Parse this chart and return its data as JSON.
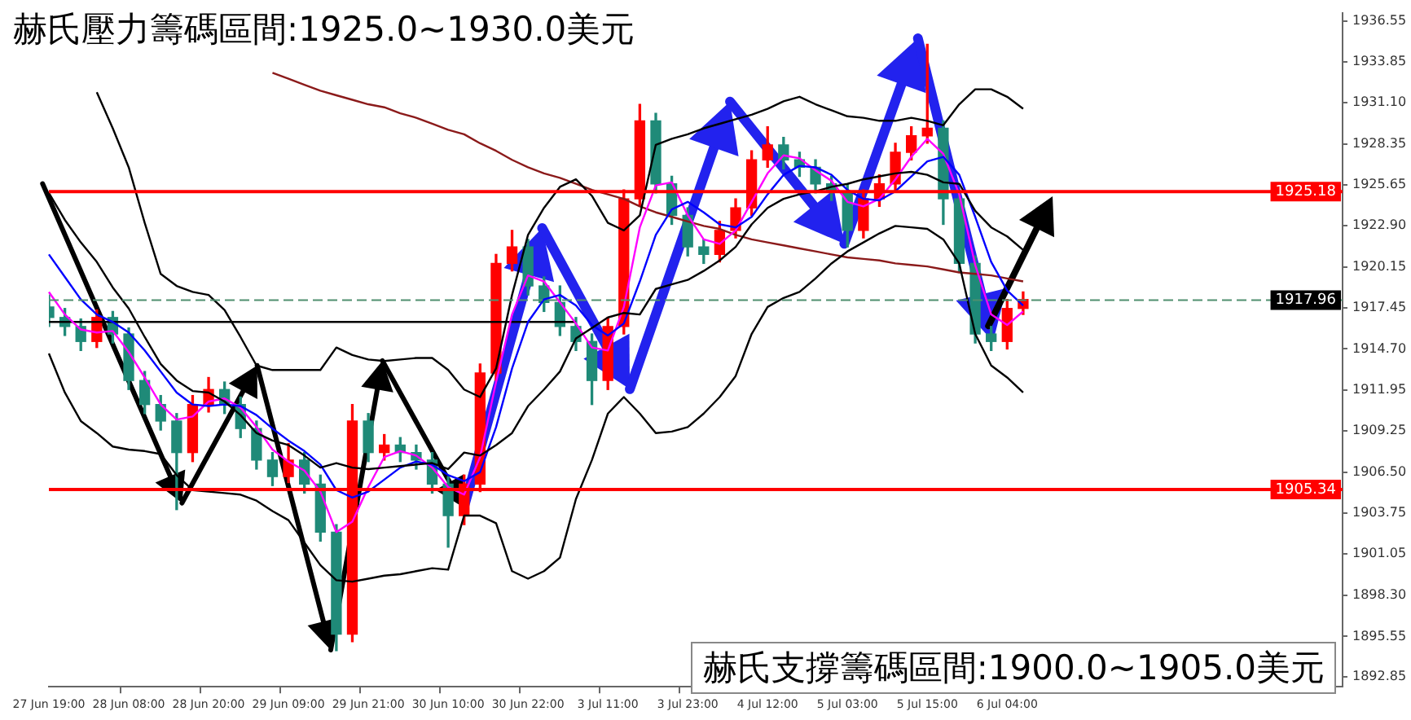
{
  "chart_data": {
    "type": "candlestick",
    "title": "赫氏壓力籌碼區間:1925.0~1930.0美元",
    "annotations": [
      "赫氏支撐籌碼區間:1900.0~1905.0美元"
    ],
    "categories": [
      "27 Jun 19:00",
      null,
      null,
      null,
      null,
      "28 Jun 08:00",
      null,
      null,
      null,
      null,
      "28 Jun 20:00",
      null,
      null,
      null,
      null,
      "29 Jun 09:00",
      null,
      null,
      null,
      null,
      "29 Jun 21:00",
      null,
      null,
      null,
      null,
      "30 Jun 10:00",
      null,
      null,
      null,
      null,
      "30 Jun 22:00",
      null,
      null,
      null,
      null,
      "3 Jul 11:00",
      null,
      null,
      null,
      null,
      "3 Jul 23:00",
      null,
      null,
      null,
      null,
      "4 Jul 12:00",
      null,
      null,
      null,
      null,
      "5 Jul 03:00",
      null,
      null,
      null,
      null,
      "5 Jul 15:00",
      null,
      null,
      null,
      null,
      "6 Jul 04:00",
      null,
      null,
      null,
      null,
      null,
      null,
      null,
      null,
      null,
      null,
      null,
      null,
      null,
      null,
      null,
      null,
      null,
      null,
      null,
      null,
      null
    ],
    "ohlc": [
      [
        1917.5,
        1918.3,
        1916.2,
        1916.8
      ],
      [
        1916.8,
        1917.4,
        1915.6,
        1916.2
      ],
      [
        1916.2,
        1916.7,
        1914.6,
        1915.2
      ],
      [
        1915.2,
        1917.3,
        1914.8,
        1916.8
      ],
      [
        1916.8,
        1917.2,
        1915.1,
        1915.7
      ],
      [
        1915.7,
        1916.1,
        1912.0,
        1912.6
      ],
      [
        1912.6,
        1913.2,
        1910.4,
        1911.0
      ],
      [
        1911.0,
        1911.6,
        1909.3,
        1909.9
      ],
      [
        1909.9,
        1910.4,
        1904.0,
        1907.8
      ],
      [
        1907.8,
        1911.6,
        1907.2,
        1911.0
      ],
      [
        1911.0,
        1912.8,
        1910.5,
        1912.0
      ],
      [
        1912.0,
        1912.5,
        1910.4,
        1911.0
      ],
      [
        1911.0,
        1911.5,
        1908.8,
        1909.4
      ],
      [
        1909.4,
        1909.9,
        1906.7,
        1907.3
      ],
      [
        1907.3,
        1907.8,
        1905.6,
        1906.2
      ],
      [
        1906.2,
        1908.4,
        1905.8,
        1907.3
      ],
      [
        1907.3,
        1907.8,
        1905.1,
        1905.7
      ],
      [
        1905.7,
        1906.3,
        1901.9,
        1902.5
      ],
      [
        1902.5,
        1903.0,
        1894.6,
        1895.7
      ],
      [
        1895.7,
        1911.0,
        1895.2,
        1909.9
      ],
      [
        1909.9,
        1910.4,
        1907.2,
        1907.8
      ],
      [
        1907.8,
        1909.0,
        1907.3,
        1908.3
      ],
      [
        1908.3,
        1908.8,
        1907.2,
        1907.8
      ],
      [
        1907.8,
        1908.3,
        1906.7,
        1907.3
      ],
      [
        1907.3,
        1907.8,
        1905.1,
        1905.7
      ],
      [
        1905.7,
        1906.2,
        1901.5,
        1903.6
      ],
      [
        1903.6,
        1906.3,
        1903.0,
        1905.7
      ],
      [
        1905.7,
        1913.7,
        1905.2,
        1913.1
      ],
      [
        1913.1,
        1921.0,
        1912.6,
        1920.4
      ],
      [
        1920.4,
        1922.6,
        1919.9,
        1921.5
      ],
      [
        1921.5,
        1922.0,
        1918.3,
        1918.9
      ],
      [
        1918.9,
        1919.5,
        1917.2,
        1917.8
      ],
      [
        1917.8,
        1918.9,
        1915.6,
        1916.2
      ],
      [
        1916.2,
        1916.8,
        1914.6,
        1915.2
      ],
      [
        1915.2,
        1915.7,
        1911.0,
        1912.6
      ],
      [
        1912.6,
        1916.8,
        1912.0,
        1916.2
      ],
      [
        1916.2,
        1925.3,
        1915.7,
        1924.7
      ],
      [
        1924.7,
        1931.0,
        1924.2,
        1929.9
      ],
      [
        1929.9,
        1930.4,
        1925.1,
        1925.7
      ],
      [
        1925.7,
        1926.2,
        1923.0,
        1923.6
      ],
      [
        1923.6,
        1924.1,
        1920.9,
        1921.5
      ],
      [
        1921.5,
        1922.0,
        1920.4,
        1921.0
      ],
      [
        1921.0,
        1923.2,
        1920.5,
        1922.6
      ],
      [
        1922.6,
        1924.7,
        1922.1,
        1924.1
      ],
      [
        1924.1,
        1927.9,
        1923.6,
        1927.3
      ],
      [
        1927.3,
        1929.5,
        1926.8,
        1928.3
      ],
      [
        1928.3,
        1928.8,
        1926.7,
        1927.3
      ],
      [
        1927.3,
        1927.8,
        1926.2,
        1926.8
      ],
      [
        1926.8,
        1927.3,
        1925.1,
        1925.7
      ],
      [
        1925.7,
        1926.2,
        1924.6,
        1925.2
      ],
      [
        1925.2,
        1925.7,
        1921.5,
        1922.6
      ],
      [
        1922.6,
        1925.3,
        1922.1,
        1924.7
      ],
      [
        1924.7,
        1926.3,
        1924.2,
        1925.7
      ],
      [
        1925.7,
        1928.4,
        1925.2,
        1927.8
      ],
      [
        1927.8,
        1929.5,
        1927.3,
        1928.9
      ],
      [
        1928.9,
        1935.0,
        1928.4,
        1929.4
      ],
      [
        1929.4,
        1929.9,
        1923.0,
        1924.7
      ],
      [
        1924.7,
        1925.2,
        1919.8,
        1920.4
      ],
      [
        1920.4,
        1920.9,
        1915.1,
        1915.7
      ],
      [
        1915.7,
        1916.2,
        1914.6,
        1915.2
      ],
      [
        1915.2,
        1918.0,
        1914.7,
        1917.4
      ],
      [
        1917.4,
        1918.5,
        1917.0,
        1918.0
      ],
      null,
      null,
      null,
      null,
      null,
      null,
      null,
      null,
      null,
      null,
      null,
      null,
      null,
      null,
      null,
      null,
      null,
      null,
      null,
      null
    ],
    "colors": [
      "#1f8a78",
      "#1f8a78",
      "#1f8a78",
      "#ff0000",
      "#1f8a78",
      "#1f8a78",
      "#1f8a78",
      "#1f8a78",
      "#1f8a78",
      "#ff0000",
      "#ff0000",
      "#1f8a78",
      "#1f8a78",
      "#1f8a78",
      "#1f8a78",
      "#ff0000",
      "#1f8a78",
      "#1f8a78",
      "#1f8a78",
      "#ff0000",
      "#1f8a78",
      "#ff0000",
      "#1f8a78",
      "#1f8a78",
      "#1f8a78",
      "#1f8a78",
      "#ff0000",
      "#ff0000",
      "#ff0000",
      "#ff0000",
      "#1f8a78",
      "#1f8a78",
      "#1f8a78",
      "#1f8a78",
      "#1f8a78",
      "#ff0000",
      "#ff0000",
      "#ff0000",
      "#1f8a78",
      "#1f8a78",
      "#1f8a78",
      "#1f8a78",
      "#ff0000",
      "#ff0000",
      "#ff0000",
      "#ff0000",
      "#1f8a78",
      "#1f8a78",
      "#1f8a78",
      "#1f8a78",
      "#1f8a78",
      "#ff0000",
      "#ff0000",
      "#ff0000",
      "#ff0000",
      "#ff0000",
      "#1f8a78",
      "#1f8a78",
      "#1f8a78",
      "#1f8a78",
      "#ff0000",
      "#ff0000",
      null,
      null,
      null,
      null,
      null,
      null,
      null,
      null,
      null,
      null,
      null,
      null,
      null,
      null,
      null,
      null,
      null,
      null,
      null,
      null
    ],
    "series": [
      {
        "type": "line",
        "color": "#000000",
        "values": [
          null,
          null,
          null,
          1931.8,
          1929.4,
          1926.8,
          1923.1,
          1919.7,
          1918.9,
          1918.5,
          1918.3,
          1917.3,
          1915.5,
          1913.6,
          1913.3,
          1913.3,
          1913.3,
          1913.3,
          1914.8,
          1914.3,
          1914.0,
          1913.9,
          1914.0,
          1914.1,
          1914.1,
          1913.3,
          1912.0,
          1911.5,
          1913.4,
          1918.3,
          1922.3,
          1924.1,
          1925.5,
          1926.0,
          1924.9,
          1923.1,
          1922.6,
          1923.6,
          1928.3,
          1928.7,
          1929.0,
          1929.4,
          1929.7,
          1930.0,
          1930.3,
          1930.7,
          1931.2,
          1931.5,
          1931.0,
          1930.6,
          1930.2,
          1930.1,
          1929.9,
          1929.9,
          1930.1,
          1929.9,
          1929.6,
          1931.0,
          1932.0,
          1932.0,
          1931.5,
          1930.7,
          null,
          null,
          null,
          null,
          null,
          null,
          null,
          null,
          null,
          null,
          null,
          null,
          null,
          null,
          null,
          null,
          null,
          null,
          null,
          null
        ]
      },
      {
        "type": "line",
        "color": "#000000",
        "values": [
          1925.1,
          1923.3,
          1921.8,
          1920.5,
          1918.8,
          1917.4,
          1915.5,
          1913.7,
          1912.6,
          1911.9,
          1911.8,
          1911.2,
          1910.3,
          1909.1,
          1908.6,
          1908.3,
          1907.6,
          1906.8,
          1907.1,
          1906.8,
          1906.7,
          1906.8,
          1906.9,
          1907.0,
          1907.1,
          1906.7,
          1907.8,
          1907.6,
          1908.3,
          1909.1,
          1910.9,
          1912.0,
          1913.2,
          1915.4,
          1916.1,
          1916.8,
          1917.1,
          1917.0,
          1918.7,
          1919.0,
          1919.3,
          1919.9,
          1920.6,
          1921.5,
          1923.0,
          1924.1,
          1924.7,
          1925.0,
          1925.2,
          1925.5,
          1925.7,
          1926.0,
          1926.2,
          1926.4,
          1926.5,
          1926.3,
          1925.8,
          1925.7,
          1923.9,
          1922.8,
          1922.2,
          1921.3,
          null,
          null,
          null,
          null,
          null,
          null,
          null,
          null,
          null,
          null,
          null,
          null,
          null,
          null,
          null,
          null,
          null,
          null,
          null,
          null
        ]
      },
      {
        "type": "line",
        "color": "#000000",
        "values": [
          1914.4,
          1911.8,
          1909.9,
          1909.1,
          1908.2,
          1908.0,
          1907.9,
          1907.7,
          1906.3,
          1905.3,
          1905.2,
          1905.1,
          1905.0,
          1904.6,
          1903.9,
          1903.3,
          1901.8,
          1900.3,
          1899.3,
          1899.2,
          1899.4,
          1899.6,
          1899.7,
          1899.9,
          1900.1,
          1900.0,
          1903.6,
          1903.6,
          1903.1,
          1899.9,
          1899.4,
          1899.9,
          1900.8,
          1904.7,
          1907.3,
          1910.4,
          1911.5,
          1910.4,
          1909.1,
          1909.2,
          1909.5,
          1910.4,
          1911.5,
          1912.9,
          1915.7,
          1917.5,
          1918.1,
          1918.5,
          1919.4,
          1920.4,
          1921.2,
          1921.8,
          1922.4,
          1922.9,
          1922.8,
          1922.7,
          1922.0,
          1920.4,
          1915.7,
          1913.6,
          1912.8,
          1911.8,
          null,
          null,
          null,
          null,
          null,
          null,
          null,
          null,
          null,
          null,
          null,
          null,
          null,
          null,
          null,
          null,
          null,
          null,
          null,
          null
        ]
      },
      {
        "type": "line",
        "color": "#0000ff",
        "values": [
          1921.0,
          1919.5,
          1918.0,
          1917.0,
          1916.5,
          1915.8,
          1914.6,
          1913.2,
          1911.8,
          1911.0,
          1910.9,
          1911.0,
          1910.9,
          1910.3,
          1909.4,
          1908.6,
          1907.9,
          1907.0,
          1905.3,
          1904.8,
          1905.2,
          1906.0,
          1906.8,
          1907.2,
          1907.0,
          1906.3,
          1905.9,
          1906.5,
          1909.5,
          1913.4,
          1916.5,
          1918.0,
          1918.3,
          1917.6,
          1916.3,
          1915.6,
          1916.4,
          1919.2,
          1922.3,
          1924.0,
          1924.5,
          1923.8,
          1923.0,
          1922.8,
          1923.5,
          1925.0,
          1926.3,
          1926.9,
          1926.8,
          1926.3,
          1925.3,
          1924.7,
          1924.6,
          1925.2,
          1926.2,
          1927.2,
          1927.5,
          1926.3,
          1923.5,
          1920.5,
          1918.6,
          1917.6,
          null,
          null,
          null,
          null,
          null,
          null,
          null,
          null,
          null,
          null,
          null,
          null,
          null,
          null,
          null,
          null,
          null,
          null,
          null,
          null
        ]
      },
      {
        "type": "line",
        "color": "#ff00ff",
        "values": [
          1918.5,
          1917.0,
          1916.0,
          1915.8,
          1915.9,
          1914.5,
          1912.8,
          1911.0,
          1910.0,
          1910.2,
          1911.2,
          1911.4,
          1910.8,
          1909.5,
          1908.0,
          1907.2,
          1906.6,
          1905.2,
          1902.5,
          1903.2,
          1905.5,
          1907.5,
          1907.9,
          1907.6,
          1906.8,
          1905.5,
          1905.0,
          1907.5,
          1912.5,
          1917.0,
          1919.6,
          1919.2,
          1917.8,
          1916.4,
          1914.8,
          1914.6,
          1917.5,
          1922.8,
          1925.6,
          1925.8,
          1923.6,
          1922.0,
          1921.7,
          1922.6,
          1924.5,
          1926.4,
          1927.6,
          1927.4,
          1926.6,
          1925.9,
          1924.5,
          1924.2,
          1924.7,
          1926.0,
          1927.5,
          1928.7,
          1927.7,
          1925.0,
          1920.3,
          1917.0,
          1916.3,
          1917.2,
          null,
          null,
          null,
          null,
          null,
          null,
          null,
          null,
          null,
          null,
          null,
          null,
          null,
          null,
          null,
          null,
          null,
          null,
          null,
          null
        ]
      },
      {
        "type": "line",
        "color": "#8b1a1a",
        "values": [
          null,
          null,
          null,
          null,
          null,
          null,
          null,
          null,
          null,
          null,
          null,
          null,
          null,
          null,
          1933.1,
          1932.7,
          1932.3,
          1931.9,
          1931.6,
          1931.3,
          1931.0,
          1930.8,
          1930.4,
          1930.1,
          1929.7,
          1929.3,
          1929.0,
          1928.4,
          1927.9,
          1927.3,
          1926.8,
          1926.4,
          1926.1,
          1925.7,
          1925.3,
          1925.0,
          1924.7,
          1924.2,
          1923.8,
          1923.5,
          1923.2,
          1922.9,
          1922.7,
          1922.3,
          1922.0,
          1921.8,
          1921.6,
          1921.4,
          1921.2,
          1921.0,
          1920.8,
          1920.7,
          1920.6,
          1920.4,
          1920.3,
          1920.2,
          1920.0,
          1919.8,
          1919.7,
          1919.6,
          1919.4,
          1919.2,
          null,
          null,
          null,
          null,
          null,
          null,
          null,
          null,
          null,
          null,
          null,
          null,
          null,
          null,
          null,
          null,
          null,
          null,
          null,
          null
        ]
      },
      {
        "type": "line",
        "color": "#000000",
        "values": [
          1916.5,
          1916.5,
          1916.5,
          1916.5,
          1916.5,
          1916.5,
          1916.5,
          1916.5,
          1916.5,
          1916.5,
          1916.5,
          1916.5,
          1916.5,
          1916.5,
          1916.5,
          1916.5,
          1916.5,
          1916.5,
          1916.5,
          1916.5,
          1916.5,
          1916.5,
          1916.5,
          1916.5,
          1916.5,
          1916.5,
          1916.5,
          1916.5,
          1916.5,
          1916.5,
          1916.5,
          1916.5,
          1916.5,
          1916.5,
          null,
          null,
          null,
          null,
          null,
          null,
          null,
          null,
          null,
          null,
          null,
          null,
          null,
          null,
          null,
          null,
          null,
          null,
          null,
          null,
          null,
          null,
          null,
          null,
          null,
          null,
          null,
          null,
          null,
          null,
          null,
          null,
          null,
          null,
          null,
          null,
          null,
          null,
          null,
          null,
          null,
          null,
          null,
          null,
          null,
          null,
          null,
          null
        ]
      }
    ],
    "ylim": [
      1892.2,
      1937.1
    ],
    "yticks": [
      1936.55,
      1933.85,
      {
        "value": 1931.1,
        "label": "1931.10"
      },
      1928.35,
      1925.65,
      {
        "value": 1922.9,
        "label": "1922.90"
      },
      1920.15,
      1917.45,
      {
        "value": 1914.7,
        "label": "1914.70"
      },
      1911.95,
      1909.25,
      {
        "value": 1906.5,
        "label": "1906.50"
      },
      1903.75,
      1901.05,
      {
        "value": 1898.3,
        "label": "1898.30"
      },
      1895.55,
      1892.85
    ],
    "ref_lines": [
      {
        "axis": "y",
        "value": 1925.18,
        "label": "1925.18",
        "color": "#ff0000"
      },
      {
        "axis": "y",
        "value": 1905.34,
        "label": "1905.34",
        "color": "#ff0000"
      },
      {
        "axis": "y",
        "value": 1917.96,
        "label": "1917.96",
        "color": "#4f8f6f",
        "line_style": "dashed"
      }
    ],
    "legend": false,
    "grid": false
  }
}
